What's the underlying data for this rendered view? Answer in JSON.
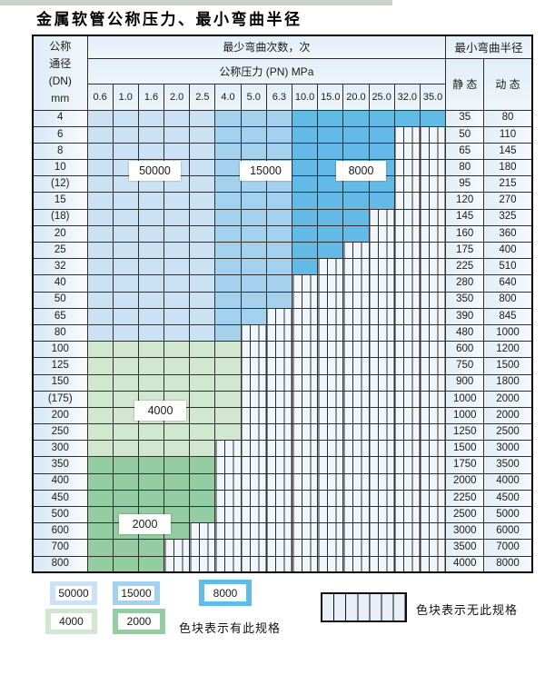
{
  "title": "金属软管公称压力、最小弯曲半径",
  "colors": {
    "band_50000": "#cbe2f4",
    "band_15000": "#a4d2ee",
    "band_8000": "#64bae6",
    "band_4000": "#d2e7d0",
    "band_2000": "#94cda1",
    "nospec_bg": "#f1f6fb",
    "header_bg": "#e8f1f9",
    "grid_line": "#2f2f2f"
  },
  "header": {
    "corner_lines": [
      "公称",
      "通径",
      "(DN)",
      "mm"
    ],
    "bend_cycles": "最少弯曲次数，次",
    "pressure": "公称压力 (PN) MPa",
    "radius": "最小弯曲半径",
    "static": "静 态",
    "dynamic": "动 态",
    "pressures": [
      "0.6",
      "1.0",
      "1.6",
      "2.0",
      "2.5",
      "4.0",
      "5.0",
      "6.3",
      "10.0",
      "15.0",
      "20.0",
      "25.0",
      "32.0",
      "35.0"
    ]
  },
  "chart_data": {
    "type": "table",
    "title": "金属软管公称压力、最小弯曲半径",
    "row_header": "公称通径(DN) mm",
    "col_group_header": "最少弯曲次数，次",
    "col_subheader": "公称压力 (PN) MPa",
    "right_group_header": "最小弯曲半径",
    "right_columns": [
      "静 态",
      "动 态"
    ],
    "pressure_columns_mpa": [
      0.6,
      1.0,
      1.6,
      2.0,
      2.5,
      4.0,
      5.0,
      6.3,
      10.0,
      15.0,
      20.0,
      25.0,
      32.0,
      35.0
    ],
    "bend_cycle_bands_blue_rows": {
      "50000": "0.6-2.5 MPa",
      "15000": "4.0-6.3 MPa",
      "8000": "10.0-35.0 MPa"
    },
    "bend_cycle_bands_green_rows": {
      "4000": "DN100-DN300",
      "2000": "DN350-DN800"
    },
    "rows": [
      {
        "dn": "4",
        "available_up_to": "35.0",
        "band": "blue",
        "static": "35",
        "dynamic": "80"
      },
      {
        "dn": "6",
        "available_up_to": "25.0",
        "band": "blue",
        "static": "50",
        "dynamic": "110"
      },
      {
        "dn": "8",
        "available_up_to": "25.0",
        "band": "blue",
        "static": "65",
        "dynamic": "145"
      },
      {
        "dn": "10",
        "available_up_to": "25.0",
        "band": "blue",
        "static": "80",
        "dynamic": "180"
      },
      {
        "dn": "(12)",
        "available_up_to": "25.0",
        "band": "blue",
        "static": "95",
        "dynamic": "215"
      },
      {
        "dn": "15",
        "available_up_to": "25.0",
        "band": "blue",
        "static": "120",
        "dynamic": "270"
      },
      {
        "dn": "(18)",
        "available_up_to": "20.0",
        "band": "blue",
        "static": "145",
        "dynamic": "325"
      },
      {
        "dn": "20",
        "available_up_to": "20.0",
        "band": "blue",
        "static": "160",
        "dynamic": "360"
      },
      {
        "dn": "25",
        "available_up_to": "15.0",
        "band": "blue",
        "static": "175",
        "dynamic": "400"
      },
      {
        "dn": "32",
        "available_up_to": "10.0",
        "band": "blue",
        "static": "225",
        "dynamic": "510"
      },
      {
        "dn": "40",
        "available_up_to": "6.3",
        "band": "blue",
        "static": "280",
        "dynamic": "640"
      },
      {
        "dn": "50",
        "available_up_to": "6.3",
        "band": "blue",
        "static": "350",
        "dynamic": "800"
      },
      {
        "dn": "65",
        "available_up_to": "5.0",
        "band": "blue",
        "static": "390",
        "dynamic": "845"
      },
      {
        "dn": "80",
        "available_up_to": "4.0",
        "band": "blue",
        "static": "480",
        "dynamic": "1000"
      },
      {
        "dn": "100",
        "available_up_to": "4.0",
        "band": "green-4000",
        "static": "600",
        "dynamic": "1200"
      },
      {
        "dn": "125",
        "available_up_to": "4.0",
        "band": "green-4000",
        "static": "750",
        "dynamic": "1500"
      },
      {
        "dn": "150",
        "available_up_to": "4.0",
        "band": "green-4000",
        "static": "900",
        "dynamic": "1800"
      },
      {
        "dn": "(175)",
        "available_up_to": "4.0",
        "band": "green-4000",
        "static": "1000",
        "dynamic": "2000"
      },
      {
        "dn": "200",
        "available_up_to": "4.0",
        "band": "green-4000",
        "static": "1000",
        "dynamic": "2000"
      },
      {
        "dn": "250",
        "available_up_to": "4.0",
        "band": "green-4000",
        "static": "1250",
        "dynamic": "2500"
      },
      {
        "dn": "300",
        "available_up_to": "2.5",
        "band": "green-4000",
        "static": "1500",
        "dynamic": "3000"
      },
      {
        "dn": "350",
        "available_up_to": "2.5",
        "band": "green-2000",
        "static": "1750",
        "dynamic": "3500"
      },
      {
        "dn": "400",
        "available_up_to": "2.5",
        "band": "green-2000",
        "static": "2000",
        "dynamic": "4000"
      },
      {
        "dn": "450",
        "available_up_to": "2.5",
        "band": "green-2000",
        "static": "2250",
        "dynamic": "4500"
      },
      {
        "dn": "500",
        "available_up_to": "2.5",
        "band": "green-2000",
        "static": "2500",
        "dynamic": "5000"
      },
      {
        "dn": "600",
        "available_up_to": "2.0",
        "band": "green-2000",
        "static": "3000",
        "dynamic": "6000"
      },
      {
        "dn": "700",
        "available_up_to": "1.6",
        "band": "green-2000",
        "static": "3500",
        "dynamic": "7000"
      },
      {
        "dn": "800",
        "available_up_to": "1.6",
        "band": "green-2000",
        "static": "4000",
        "dynamic": "8000"
      }
    ]
  },
  "region_labels": {
    "r50000": "50000",
    "r15000": "15000",
    "r8000": "8000",
    "r4000": "4000",
    "r2000": "2000"
  },
  "legend": {
    "items": [
      {
        "value": "50000",
        "color": "#cbe2f4"
      },
      {
        "value": "15000",
        "color": "#a4d2ee"
      },
      {
        "value": "8000",
        "color": "#64bae6"
      },
      {
        "value": "4000",
        "color": "#d2e7d0"
      },
      {
        "value": "2000",
        "color": "#94cda1"
      }
    ],
    "available_text": "色块表示有此规格",
    "unavailable_text": "色块表示无此规格"
  }
}
